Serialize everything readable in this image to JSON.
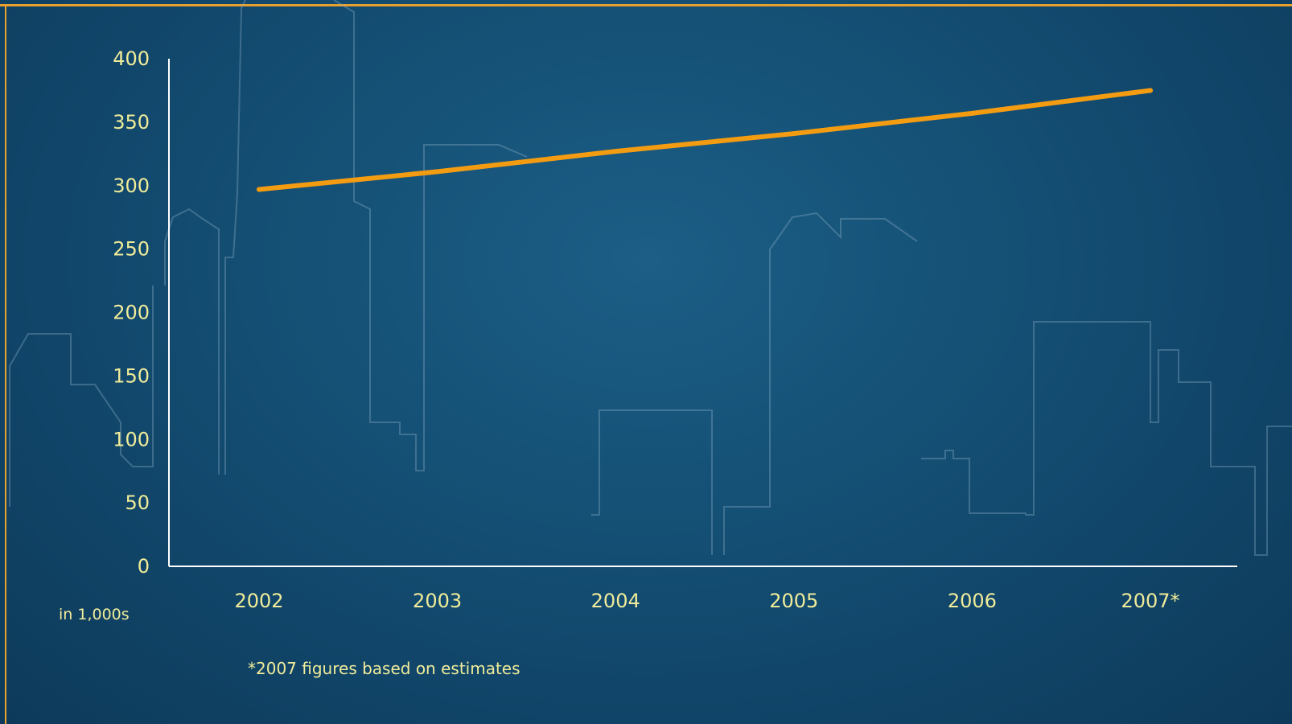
{
  "chart_data": {
    "type": "line",
    "title": "",
    "xlabel": "",
    "ylabel": "",
    "unit_label": "in 1,000s",
    "footnote": "*2007 figures based on estimates",
    "categories": [
      "2002",
      "2003",
      "2004",
      "2005",
      "2006",
      "2007*"
    ],
    "y_ticks": [
      "0",
      "50",
      "100",
      "150",
      "200",
      "250",
      "300",
      "350",
      "400"
    ],
    "ylim": [
      0,
      400
    ],
    "grid": false,
    "series": [
      {
        "values": [
          297,
          311,
          327,
          341,
          357,
          375
        ]
      }
    ],
    "colors": {
      "line": "#f39c12",
      "axis": "#ffffff",
      "text": "#f0ec9a",
      "frame": "#e8a12c"
    }
  }
}
